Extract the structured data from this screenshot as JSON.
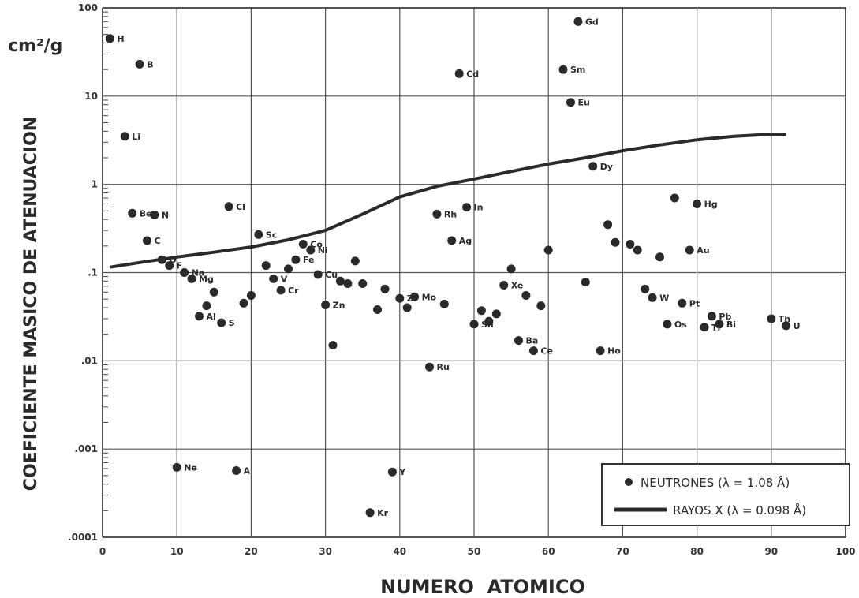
{
  "chart_data": {
    "type": "scatter",
    "xlabel": "NUMERO  ATOMICO",
    "ylabel": "COEFICIENTE MASICO DE ATENUACION",
    "y_unit": "cm²/g",
    "xlim": [
      0,
      100
    ],
    "ylim": [
      0.0001,
      100
    ],
    "y_scale": "log",
    "grid": true,
    "legend_position": "bottom-right",
    "x_ticks": [
      "0",
      "10",
      "20",
      "30",
      "40",
      "50",
      "60",
      "70",
      "80",
      "90",
      "100"
    ],
    "y_ticks": [
      {
        "value": 100,
        "label": "100"
      },
      {
        "value": 10,
        "label": "10"
      },
      {
        "value": 1,
        "label": "1"
      },
      {
        "value": 0.1,
        "label": ".1"
      },
      {
        "value": 0.01,
        "label": ".01"
      },
      {
        "value": 0.001,
        "label": ".001"
      },
      {
        "value": 0.0001,
        "label": ".0001"
      }
    ],
    "legend": [
      {
        "marker": "dot",
        "label": "NEUTRONES (λ = 1.08 Å)"
      },
      {
        "marker": "line",
        "label": "RAYOS X (λ = 0.098 Å)"
      }
    ],
    "series": [
      {
        "name": "NEUTRONES (λ = 1.08 Å)",
        "kind": "points",
        "points": [
          {
            "z": 1,
            "y": 45,
            "label": "H"
          },
          {
            "z": 3,
            "y": 3.5,
            "label": "Li"
          },
          {
            "z": 4,
            "y": 0.47,
            "label": "Be"
          },
          {
            "z": 5,
            "y": 23,
            "label": "B"
          },
          {
            "z": 6,
            "y": 0.23,
            "label": "C"
          },
          {
            "z": 7,
            "y": 0.45,
            "label": "N"
          },
          {
            "z": 8,
            "y": 0.14,
            "label": "O"
          },
          {
            "z": 9,
            "y": 0.12,
            "label": "F"
          },
          {
            "z": 10,
            "y": 0.00062,
            "label": "Ne"
          },
          {
            "z": 11,
            "y": 0.1,
            "label": "Na"
          },
          {
            "z": 12,
            "y": 0.085,
            "label": "Mg"
          },
          {
            "z": 13,
            "y": 0.032,
            "label": "Al"
          },
          {
            "z": 14,
            "y": 0.042,
            "label": ""
          },
          {
            "z": 15,
            "y": 0.06,
            "label": ""
          },
          {
            "z": 16,
            "y": 0.027,
            "label": "S"
          },
          {
            "z": 17,
            "y": 0.56,
            "label": "Cl"
          },
          {
            "z": 18,
            "y": 0.00057,
            "label": "A"
          },
          {
            "z": 19,
            "y": 0.045,
            "label": ""
          },
          {
            "z": 20,
            "y": 0.055,
            "label": ""
          },
          {
            "z": 21,
            "y": 0.27,
            "label": "Sc"
          },
          {
            "z": 22,
            "y": 0.12,
            "label": ""
          },
          {
            "z": 23,
            "y": 0.085,
            "label": "V"
          },
          {
            "z": 24,
            "y": 0.063,
            "label": "Cr"
          },
          {
            "z": 25,
            "y": 0.11,
            "label": ""
          },
          {
            "z": 26,
            "y": 0.14,
            "label": "Fe"
          },
          {
            "z": 27,
            "y": 0.21,
            "label": "Co"
          },
          {
            "z": 28,
            "y": 0.18,
            "label": "Ni"
          },
          {
            "z": 29,
            "y": 0.095,
            "label": "Cu"
          },
          {
            "z": 30,
            "y": 0.043,
            "label": "Zn"
          },
          {
            "z": 31,
            "y": 0.015,
            "label": ""
          },
          {
            "z": 32,
            "y": 0.08,
            "label": ""
          },
          {
            "z": 33,
            "y": 0.075,
            "label": ""
          },
          {
            "z": 34,
            "y": 0.135,
            "label": ""
          },
          {
            "z": 35,
            "y": 0.075,
            "label": ""
          },
          {
            "z": 36,
            "y": 0.00019,
            "label": "Kr"
          },
          {
            "z": 37,
            "y": 0.038,
            "label": ""
          },
          {
            "z": 38,
            "y": 0.065,
            "label": ""
          },
          {
            "z": 39,
            "y": 0.00055,
            "label": "Y"
          },
          {
            "z": 40,
            "y": 0.051,
            "label": "Zr"
          },
          {
            "z": 41,
            "y": 0.04,
            "label": ""
          },
          {
            "z": 42,
            "y": 0.053,
            "label": "Mo"
          },
          {
            "z": 44,
            "y": 0.0085,
            "label": "Ru"
          },
          {
            "z": 45,
            "y": 0.46,
            "label": "Rh"
          },
          {
            "z": 46,
            "y": 0.044,
            "label": ""
          },
          {
            "z": 47,
            "y": 0.23,
            "label": "Ag"
          },
          {
            "z": 48,
            "y": 18,
            "label": "Cd"
          },
          {
            "z": 49,
            "y": 0.55,
            "label": "In"
          },
          {
            "z": 50,
            "y": 0.026,
            "label": "Sn"
          },
          {
            "z": 51,
            "y": 0.037,
            "label": ""
          },
          {
            "z": 52,
            "y": 0.028,
            "label": ""
          },
          {
            "z": 53,
            "y": 0.034,
            "label": ""
          },
          {
            "z": 54,
            "y": 0.072,
            "label": "Xe"
          },
          {
            "z": 55,
            "y": 0.11,
            "label": ""
          },
          {
            "z": 56,
            "y": 0.017,
            "label": "Ba"
          },
          {
            "z": 57,
            "y": 0.055,
            "label": ""
          },
          {
            "z": 58,
            "y": 0.013,
            "label": "Ce"
          },
          {
            "z": 59,
            "y": 0.042,
            "label": ""
          },
          {
            "z": 60,
            "y": 0.18,
            "label": ""
          },
          {
            "z": 62,
            "y": 20,
            "label": "Sm"
          },
          {
            "z": 63,
            "y": 8.5,
            "label": "Eu"
          },
          {
            "z": 64,
            "y": 70,
            "label": "Gd"
          },
          {
            "z": 65,
            "y": 0.078,
            "label": ""
          },
          {
            "z": 66,
            "y": 1.6,
            "label": "Dy"
          },
          {
            "z": 67,
            "y": 0.013,
            "label": "Ho"
          },
          {
            "z": 68,
            "y": 0.35,
            "label": ""
          },
          {
            "z": 69,
            "y": 0.22,
            "label": ""
          },
          {
            "z": 71,
            "y": 0.21,
            "label": ""
          },
          {
            "z": 72,
            "y": 0.18,
            "label": ""
          },
          {
            "z": 73,
            "y": 0.065,
            "label": ""
          },
          {
            "z": 74,
            "y": 0.052,
            "label": "W"
          },
          {
            "z": 75,
            "y": 0.15,
            "label": ""
          },
          {
            "z": 76,
            "y": 0.026,
            "label": "Os"
          },
          {
            "z": 77,
            "y": 0.7,
            "label": ""
          },
          {
            "z": 78,
            "y": 0.045,
            "label": "Pt"
          },
          {
            "z": 79,
            "y": 0.18,
            "label": "Au"
          },
          {
            "z": 80,
            "y": 0.6,
            "label": "Hg"
          },
          {
            "z": 81,
            "y": 0.024,
            "label": "Tl"
          },
          {
            "z": 82,
            "y": 0.032,
            "label": "Pb"
          },
          {
            "z": 83,
            "y": 0.026,
            "label": "Bi"
          },
          {
            "z": 90,
            "y": 0.03,
            "label": "Th"
          },
          {
            "z": 92,
            "y": 0.025,
            "label": "U"
          }
        ]
      },
      {
        "name": "RAYOS X (λ = 0.098 Å)",
        "kind": "line",
        "x": [
          1,
          5,
          10,
          15,
          20,
          25,
          30,
          35,
          40,
          45,
          50,
          55,
          60,
          65,
          70,
          75,
          80,
          85,
          90,
          92
        ],
        "y": [
          0.115,
          0.13,
          0.15,
          0.17,
          0.195,
          0.235,
          0.3,
          0.46,
          0.72,
          0.95,
          1.15,
          1.4,
          1.7,
          2.0,
          2.4,
          2.8,
          3.2,
          3.5,
          3.7,
          3.7
        ]
      }
    ]
  }
}
